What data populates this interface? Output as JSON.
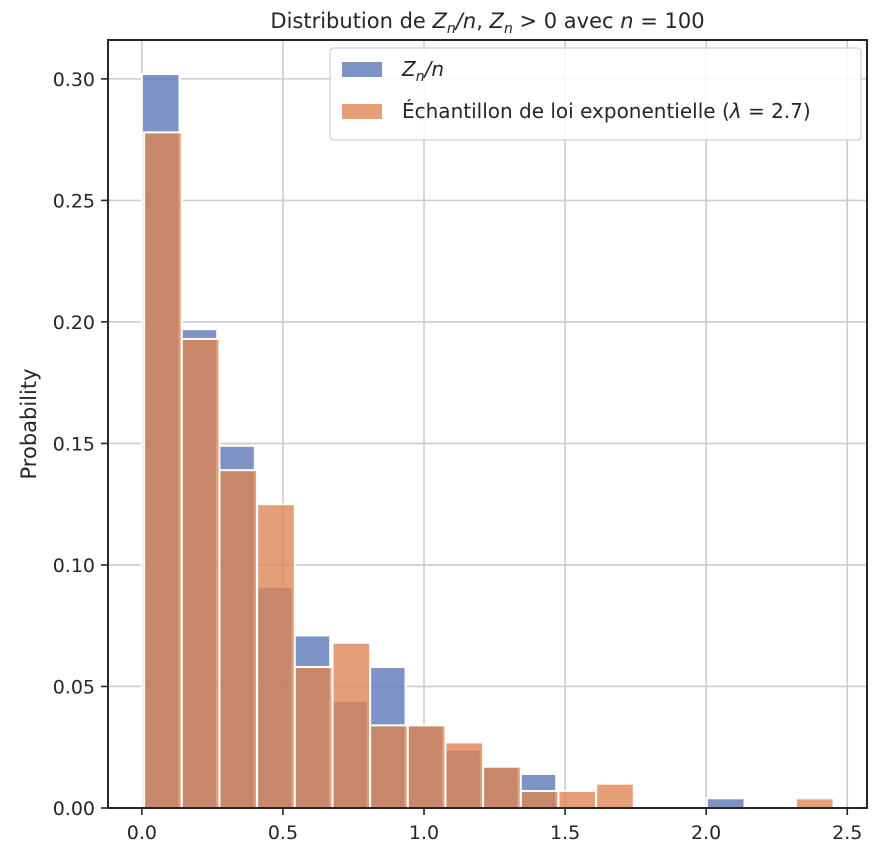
{
  "chart_data": {
    "type": "bar",
    "title_parts": [
      "Distribution de ",
      "Z",
      "n",
      "/",
      "n",
      ", ",
      "Z",
      "n",
      " > 0 avec ",
      "n",
      " = 100"
    ],
    "ylabel": "Probability",
    "xlabel": "",
    "xlim": [
      -0.12,
      2.57
    ],
    "ylim": [
      0,
      0.316
    ],
    "x_ticks": [
      0.0,
      0.5,
      1.0,
      1.5,
      2.0,
      2.5
    ],
    "x_tick_labels": [
      "0.0",
      "0.5",
      "1.0",
      "1.5",
      "2.0",
      "2.5"
    ],
    "y_ticks": [
      0.0,
      0.05,
      0.1,
      0.15,
      0.2,
      0.25,
      0.3
    ],
    "y_tick_labels": [
      "0.00",
      "0.05",
      "0.10",
      "0.15",
      "0.20",
      "0.25",
      "0.30"
    ],
    "grid": true,
    "legend_position": "top-right",
    "series": [
      {
        "name_parts": [
          "Z",
          "n",
          "/",
          "n"
        ],
        "color": "#5875b5",
        "bin_width": 0.1335,
        "bins": [
          [
            0.0,
            0.302
          ],
          [
            0.1335,
            0.197
          ],
          [
            0.267,
            0.149
          ],
          [
            0.4005,
            0.091
          ],
          [
            0.534,
            0.071
          ],
          [
            0.6675,
            0.044
          ],
          [
            0.801,
            0.058
          ],
          [
            0.9345,
            0.034
          ],
          [
            1.068,
            0.024
          ],
          [
            1.2015,
            0.017
          ],
          [
            1.335,
            0.014
          ],
          [
            1.4685,
            0.0
          ],
          [
            1.602,
            0.0
          ],
          [
            1.7355,
            0.0
          ],
          [
            1.869,
            0.0
          ],
          [
            2.0025,
            0.004
          ]
        ]
      },
      {
        "name": "Échantillon de loi exponentielle (λ = 2.7)",
        "name_parts": [
          "Échantillon de loi exponentielle (",
          "λ",
          " = 2.7)"
        ],
        "color": "#dd8452",
        "bin_width": 0.1335,
        "bins": [
          [
            0.008,
            0.278
          ],
          [
            0.1415,
            0.193
          ],
          [
            0.275,
            0.139
          ],
          [
            0.4085,
            0.125
          ],
          [
            0.542,
            0.058
          ],
          [
            0.6755,
            0.068
          ],
          [
            0.809,
            0.034
          ],
          [
            0.9425,
            0.034
          ],
          [
            1.076,
            0.027
          ],
          [
            1.2095,
            0.017
          ],
          [
            1.343,
            0.007
          ],
          [
            1.4765,
            0.007
          ],
          [
            1.61,
            0.01
          ],
          [
            1.7435,
            0.0
          ],
          [
            1.877,
            0.0
          ],
          [
            2.0105,
            0.0
          ],
          [
            2.144,
            0.0
          ],
          [
            2.2775,
            0.0
          ],
          [
            2.318,
            0.004
          ]
        ]
      }
    ]
  }
}
